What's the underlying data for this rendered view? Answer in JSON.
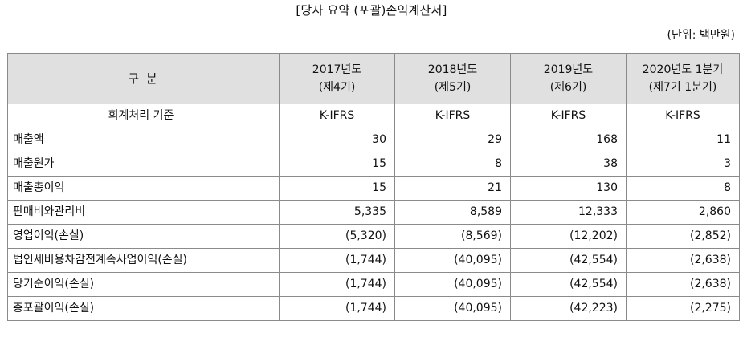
{
  "title": "[당사 요약 (포괄)손익계산서]",
  "unit": "(단위: 백만원)",
  "table": {
    "label_header": "구 분",
    "periods": [
      {
        "line1": "2017년도",
        "line2": "(제4기)"
      },
      {
        "line1": "2018년도",
        "line2": "(제5기)"
      },
      {
        "line1": "2019년도",
        "line2": "(제6기)"
      },
      {
        "line1": "2020년도 1분기",
        "line2": "(제7기 1분기)"
      }
    ],
    "basis_row": {
      "label": "회계처리 기준",
      "values": [
        "K-IFRS",
        "K-IFRS",
        "K-IFRS",
        "K-IFRS"
      ]
    },
    "rows": [
      {
        "label": "매출액",
        "values": [
          "30",
          "29",
          "168",
          "11"
        ]
      },
      {
        "label": "매출원가",
        "values": [
          "15",
          "8",
          "38",
          "3"
        ]
      },
      {
        "label": "매출총이익",
        "values": [
          "15",
          "21",
          "130",
          "8"
        ]
      },
      {
        "label": "판매비와관리비",
        "values": [
          "5,335",
          "8,589",
          "12,333",
          "2,860"
        ]
      },
      {
        "label": "영업이익(손실)",
        "values": [
          "(5,320)",
          "(8,569)",
          "(12,202)",
          "(2,852)"
        ]
      },
      {
        "label": "법인세비용차감전계속사업이익(손실)",
        "values": [
          "(1,744)",
          "(40,095)",
          "(42,554)",
          "(2,638)"
        ]
      },
      {
        "label": "당기순이익(손실)",
        "values": [
          "(1,744)",
          "(40,095)",
          "(42,554)",
          "(2,638)"
        ]
      },
      {
        "label": "총포괄이익(손실)",
        "values": [
          "(1,744)",
          "(40,095)",
          "(42,223)",
          "(2,275)"
        ]
      }
    ]
  }
}
